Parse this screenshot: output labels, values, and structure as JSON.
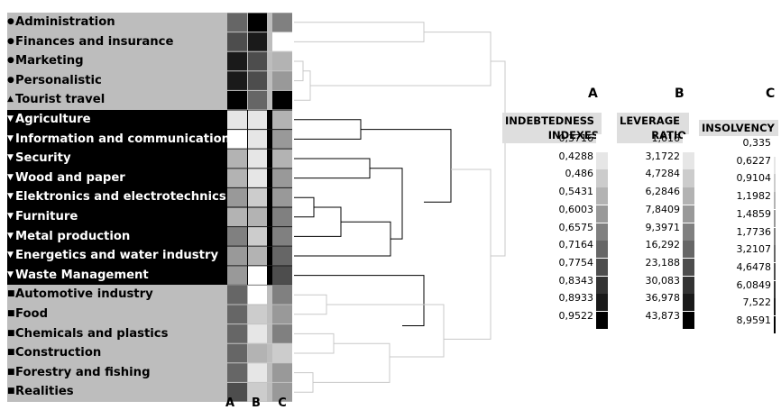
{
  "chart_data": {
    "type": "heatmap",
    "rows": [
      {
        "label": "Administration",
        "marker": "●",
        "group": "circle"
      },
      {
        "label": "Finances and insurance",
        "marker": "●",
        "group": "circle"
      },
      {
        "label": "Marketing",
        "marker": "●",
        "group": "circle"
      },
      {
        "label": "Personalistic",
        "marker": "●",
        "group": "circle"
      },
      {
        "label": "Tourist travel",
        "marker": "▲",
        "group": "triangle"
      },
      {
        "label": "Agriculture",
        "marker": "▼",
        "group": "down"
      },
      {
        "label": "Information and communication",
        "marker": "▼",
        "group": "down"
      },
      {
        "label": "Security",
        "marker": "▼",
        "group": "down"
      },
      {
        "label": "Wood and paper",
        "marker": "▼",
        "group": "down"
      },
      {
        "label": "Elektronics and electrotechnics",
        "marker": "▼",
        "group": "down"
      },
      {
        "label": "Furniture",
        "marker": "▼",
        "group": "down"
      },
      {
        "label": "Metal production",
        "marker": "▼",
        "group": "down"
      },
      {
        "label": "Energetics and water industry",
        "marker": "▼",
        "group": "down"
      },
      {
        "label": "Waste Management",
        "marker": "▼",
        "group": "down"
      },
      {
        "label": "Automotive industry",
        "marker": "■",
        "group": "square"
      },
      {
        "label": "Food",
        "marker": "■",
        "group": "square"
      },
      {
        "label": "Chemicals and plastics",
        "marker": "■",
        "group": "square"
      },
      {
        "label": "Construction",
        "marker": "■",
        "group": "square"
      },
      {
        "label": "Forestry and fishing",
        "marker": "■",
        "group": "square"
      },
      {
        "label": "Realities",
        "marker": "■",
        "group": "square"
      }
    ],
    "columns": [
      "A",
      "B",
      "C"
    ],
    "shade_scale": "0 = white (lowest class), 10 = black (highest class)",
    "values": [
      [
        6,
        10,
        5
      ],
      [
        7,
        9,
        0
      ],
      [
        9,
        7,
        3
      ],
      [
        9,
        7,
        4
      ],
      [
        10,
        6,
        10
      ],
      [
        1,
        1,
        3
      ],
      [
        0,
        1,
        4
      ],
      [
        3,
        1,
        3
      ],
      [
        3,
        1,
        4
      ],
      [
        4,
        2,
        4
      ],
      [
        3,
        3,
        5
      ],
      [
        5,
        2,
        5
      ],
      [
        4,
        3,
        6
      ],
      [
        4,
        0,
        7
      ],
      [
        6,
        0,
        5
      ],
      [
        6,
        2,
        4
      ],
      [
        6,
        1,
        5
      ],
      [
        6,
        3,
        2
      ],
      [
        6,
        1,
        4
      ],
      [
        7,
        2,
        4
      ]
    ],
    "legends": [
      {
        "id": "A",
        "header": [
          "INDEBTEDNESS",
          "INDEXES"
        ],
        "values": [
          "0,3716",
          "0,4288",
          "0,486",
          "0,5431",
          "0,6003",
          "0,6575",
          "0,7164",
          "0,7754",
          "0,8343",
          "0,8933",
          "0,9522"
        ]
      },
      {
        "id": "B",
        "header": [
          "LEVERAGE",
          "RATIO"
        ],
        "values": [
          "1,616",
          "3,1722",
          "4,7284",
          "6,2846",
          "7,8409",
          "9,3971",
          "16,292",
          "23,188",
          "30,083",
          "36,978",
          "43,873"
        ]
      },
      {
        "id": "C",
        "header": [
          "INSOLVENCY"
        ],
        "values": [
          "0,335",
          "0,6227",
          "0,9104",
          "1,1982",
          "1,4859",
          "1,7736",
          "3,2107",
          "4,6478",
          "6,0849",
          "7,522",
          "8,9591"
        ]
      }
    ],
    "dendrogram_order": "rows top to bottom as listed"
  },
  "colors": {
    "grey_band": "#bdbdbd",
    "black_band": "#000000",
    "tree_grey": "#c8c8c8",
    "tree_black": "#000000"
  }
}
